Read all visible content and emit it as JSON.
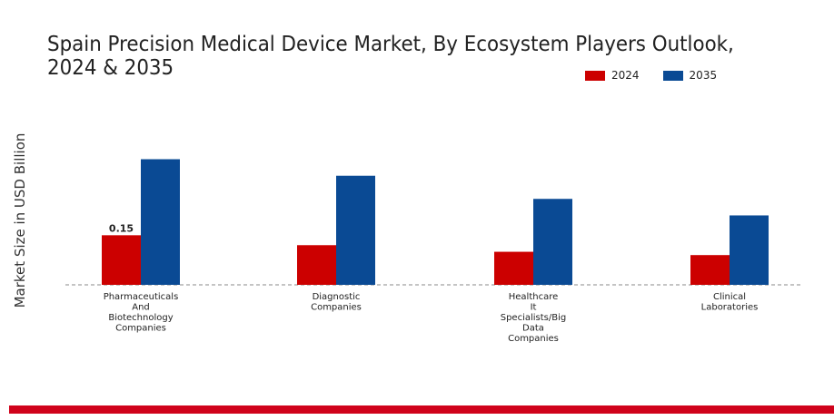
{
  "chart_data": {
    "type": "bar",
    "title": "Spain Precision Medical Device Market, By Ecosystem Players Outlook, 2024 & 2035",
    "xlabel": "",
    "ylabel": "Market Size in USD Billion",
    "categories": [
      "Pharmaceuticals And Biotechnology Companies",
      "Diagnostic Companies",
      "Healthcare It Specialists/Big Data Companies",
      "Clinical Laboratories"
    ],
    "category_label_lines": [
      [
        "Pharmaceuticals",
        "And",
        "Biotechnology",
        "Companies"
      ],
      [
        "Diagnostic",
        "Companies"
      ],
      [
        "Healthcare",
        "It",
        "Specialists/Big",
        "Data",
        "Companies"
      ],
      [
        "Clinical",
        "Laboratories"
      ]
    ],
    "series": [
      {
        "name": "2024",
        "color": "#cc0000",
        "values": [
          0.15,
          0.12,
          0.1,
          0.09
        ]
      },
      {
        "name": "2035",
        "color": "#0a4a94",
        "values": [
          0.38,
          0.33,
          0.26,
          0.21
        ]
      }
    ],
    "data_labels": [
      {
        "series": 0,
        "index": 0,
        "text": "0.15"
      }
    ],
    "ylim": [
      0,
      0.45
    ],
    "grid": false,
    "legend_position": "top-right",
    "baseline": "dashed"
  }
}
